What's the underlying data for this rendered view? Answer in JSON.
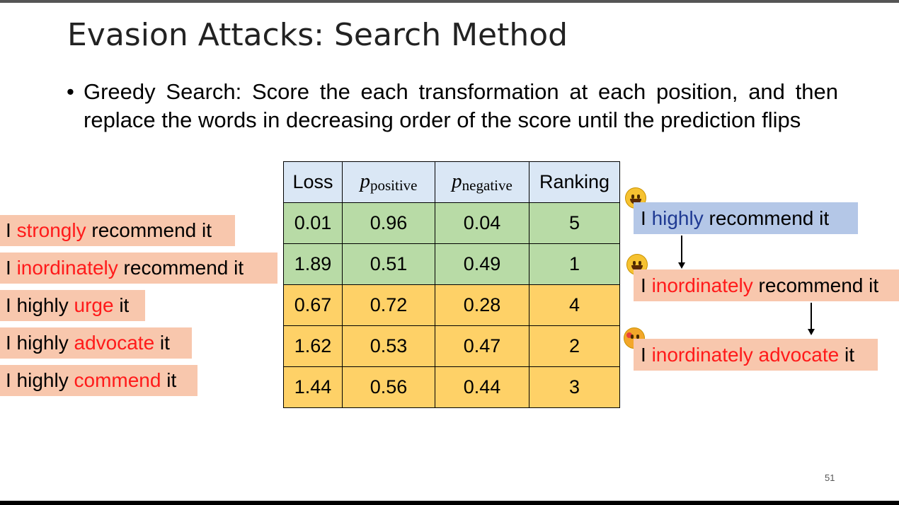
{
  "slide": {
    "title": "Evasion Attacks: Search Method",
    "bullet_symbol": "•",
    "bullet_text": "Greedy Search: Score the each transformation at each position, and then replace the words in decreasing order of the score until the prediction flips",
    "page_number": "51"
  },
  "candidates": [
    {
      "pre": "I ",
      "word": "strongly",
      "post": " recommend it"
    },
    {
      "pre": "I ",
      "word": "inordinately",
      "post": " recommend it"
    },
    {
      "pre": "I highly ",
      "word": "urge",
      "post": " it"
    },
    {
      "pre": "I highly ",
      "word": "advocate",
      "post": " it"
    },
    {
      "pre": "I highly ",
      "word": "commend",
      "post": " it"
    }
  ],
  "table": {
    "headers": {
      "loss": "Loss",
      "p": "p",
      "positive_sub": "positive",
      "negative_sub": "negative",
      "ranking": "Ranking"
    },
    "rows": [
      {
        "loss": "0.01",
        "p_pos": "0.96",
        "p_neg": "0.04",
        "rank": "5"
      },
      {
        "loss": "1.89",
        "p_pos": "0.51",
        "p_neg": "0.49",
        "rank": "1"
      },
      {
        "loss": "0.67",
        "p_pos": "0.72",
        "p_neg": "0.28",
        "rank": "4"
      },
      {
        "loss": "1.62",
        "p_pos": "0.53",
        "p_neg": "0.47",
        "rank": "2"
      },
      {
        "loss": "1.44",
        "p_pos": "0.56",
        "p_neg": "0.44",
        "rank": "3"
      }
    ]
  },
  "chain": [
    {
      "pre": "I ",
      "word": "highly",
      "post": " recommend it",
      "emoji": "grinning-face-icon"
    },
    {
      "pre": "I ",
      "word": "inordinately",
      "post": " recommend it",
      "emoji": "grinning-face-icon"
    },
    {
      "pre": "I ",
      "word": "inordinately advocate",
      "post": " it",
      "emoji": "angry-face-icon"
    }
  ],
  "colors": {
    "highlight_red": "#ff1a1a",
    "candidate_bg": "#f8c7ad",
    "original_bg": "#b4c7e7",
    "green_rows": "#b8dba6",
    "yellow_rows": "#fed167",
    "header_bg": "#dae7f5"
  }
}
